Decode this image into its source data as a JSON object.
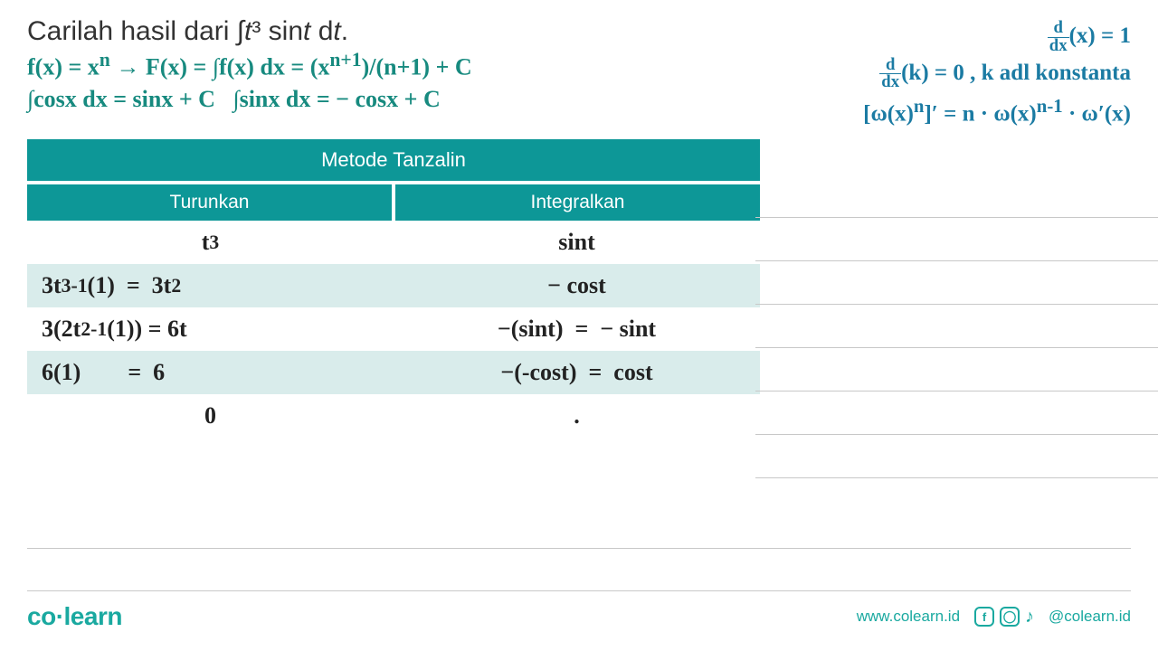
{
  "title_html": "Carilah hasil dari ∫<i>t</i>³ sin<i>t</i> d<i>t</i>.",
  "green_notes": {
    "line1_html": "f(x) = x<sup>n</sup> → F(x) = ∫f(x) dx = (x<sup>n+1</sup>)/(n+1) + C",
    "line2_html": "∫cosx dx = sinx + C &nbsp; ∫sinx dx = − cosx + C"
  },
  "blue_notes": {
    "line1_html": "<span class='frac'><span class='num'>d</span><span class='den'>dx</span></span>(x) = 1",
    "line2_html": "<span class='frac'><span class='num'>d</span><span class='den'>dx</span></span>(k) = 0 , k adl konstanta",
    "line3_html": "[ω(x)<sup>n</sup>]′ = n · ω(x)<sup>n-1</sup> · ω′(x)"
  },
  "table": {
    "title": "Metode Tanzalin",
    "col_left": "Turunkan",
    "col_right": "Integralkan",
    "rows": [
      {
        "left_html": "t<sup>3</sup>",
        "right_html": "sint",
        "left_align": "center",
        "right_align": "center",
        "tint": false,
        "hand": true
      },
      {
        "left_html": "3t<sup>3-1</sup>(1) &nbsp;= &nbsp;3t<sup>2</sup>",
        "right_html": "− cost",
        "left_align": "left",
        "right_align": "center",
        "tint": true,
        "hand": true
      },
      {
        "left_html": "3(2t<sup>2-1</sup>(1)) = 6t",
        "right_html": "−(sint) &nbsp;= &nbsp;− sint",
        "left_align": "left",
        "right_align": "center",
        "tint": false,
        "hand": true
      },
      {
        "left_html": "6(1) &nbsp;&nbsp;&nbsp;&nbsp;&nbsp;&nbsp;&nbsp;= &nbsp;6",
        "right_html": "−(-cost) &nbsp;= &nbsp;cost",
        "left_align": "left",
        "right_align": "center",
        "tint": true,
        "hand": true
      },
      {
        "left_html": "0",
        "right_html": ".",
        "left_align": "center",
        "right_align": "center",
        "tint": false,
        "hand": true
      }
    ],
    "header_bg": "#0d9797",
    "tint_bg": "#d9eceb"
  },
  "footer": {
    "brand_html": "co<span class='dot'>·</span>learn",
    "url": "www.colearn.id",
    "handle": "@colearn.id"
  },
  "colors": {
    "green": "#178a7f",
    "blue": "#1b7ba3",
    "teal": "#0d9797",
    "line": "#c8c8c8"
  }
}
